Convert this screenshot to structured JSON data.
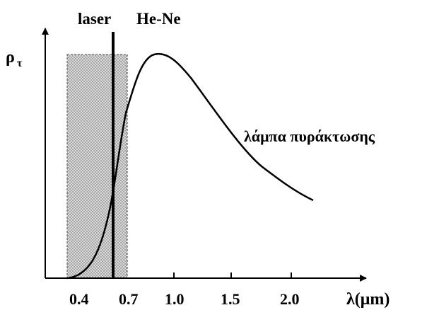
{
  "diagram": {
    "laser_label": "laser",
    "laser_name": "He-Ne",
    "y_axis_label": "ρ",
    "y_axis_subscript": "τ",
    "x_axis_label": "λ(μm)",
    "curve_label": "λάμπα πυράκτωσης",
    "ticks": [
      {
        "value": 0.4,
        "label": "0.4"
      },
      {
        "value": 0.7,
        "label": "0.7"
      },
      {
        "value": 1.0,
        "label": "1.0"
      },
      {
        "value": 1.5,
        "label": "1.5"
      },
      {
        "value": 2.0,
        "label": "2.0"
      }
    ],
    "visible_band_um": [
      0.38,
      0.72
    ],
    "laser_line_um": 0.6328,
    "colors": {
      "band_fill": "#d9d9d9",
      "band_dots": "#555555",
      "ink": "#000000"
    }
  }
}
